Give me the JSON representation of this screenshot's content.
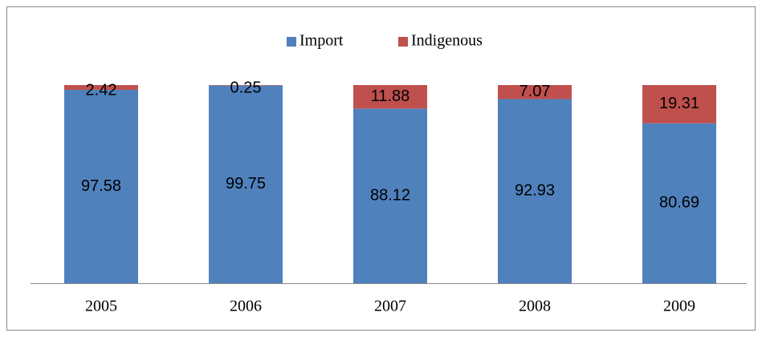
{
  "chart_data": {
    "type": "stacked-bar",
    "categories": [
      "2005",
      "2006",
      "2007",
      "2008",
      "2009"
    ],
    "series": [
      {
        "name": "Import",
        "color": "#4f81bd",
        "values": [
          97.58,
          99.75,
          88.12,
          92.93,
          80.69
        ]
      },
      {
        "name": "Indigenous",
        "color": "#c0504d",
        "values": [
          2.42,
          0.25,
          11.88,
          7.07,
          19.31
        ]
      }
    ],
    "legend": "top"
  }
}
